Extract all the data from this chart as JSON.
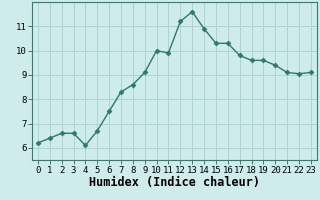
{
  "x": [
    0,
    1,
    2,
    3,
    4,
    5,
    6,
    7,
    8,
    9,
    10,
    11,
    12,
    13,
    14,
    15,
    16,
    17,
    18,
    19,
    20,
    21,
    22,
    23
  ],
  "y": [
    6.2,
    6.4,
    6.6,
    6.6,
    6.1,
    6.7,
    7.5,
    8.3,
    8.6,
    9.1,
    10.0,
    9.9,
    11.2,
    11.6,
    10.9,
    10.3,
    10.3,
    9.8,
    9.6,
    9.6,
    9.4,
    9.1,
    9.05,
    9.1
  ],
  "xlabel": "Humidex (Indice chaleur)",
  "line_color": "#2d7a6a",
  "marker": "D",
  "marker_size": 2.5,
  "bg_color": "#ceecea",
  "grid_color": "#aed4d0",
  "xlim": [
    -0.5,
    23.5
  ],
  "ylim": [
    5.5,
    12.0
  ],
  "yticks": [
    6,
    7,
    8,
    9,
    10,
    11
  ],
  "xticks": [
    0,
    1,
    2,
    3,
    4,
    5,
    6,
    7,
    8,
    9,
    10,
    11,
    12,
    13,
    14,
    15,
    16,
    17,
    18,
    19,
    20,
    21,
    22,
    23
  ],
  "tick_fontsize": 6.5,
  "xlabel_fontsize": 8.5,
  "linewidth": 1.0
}
